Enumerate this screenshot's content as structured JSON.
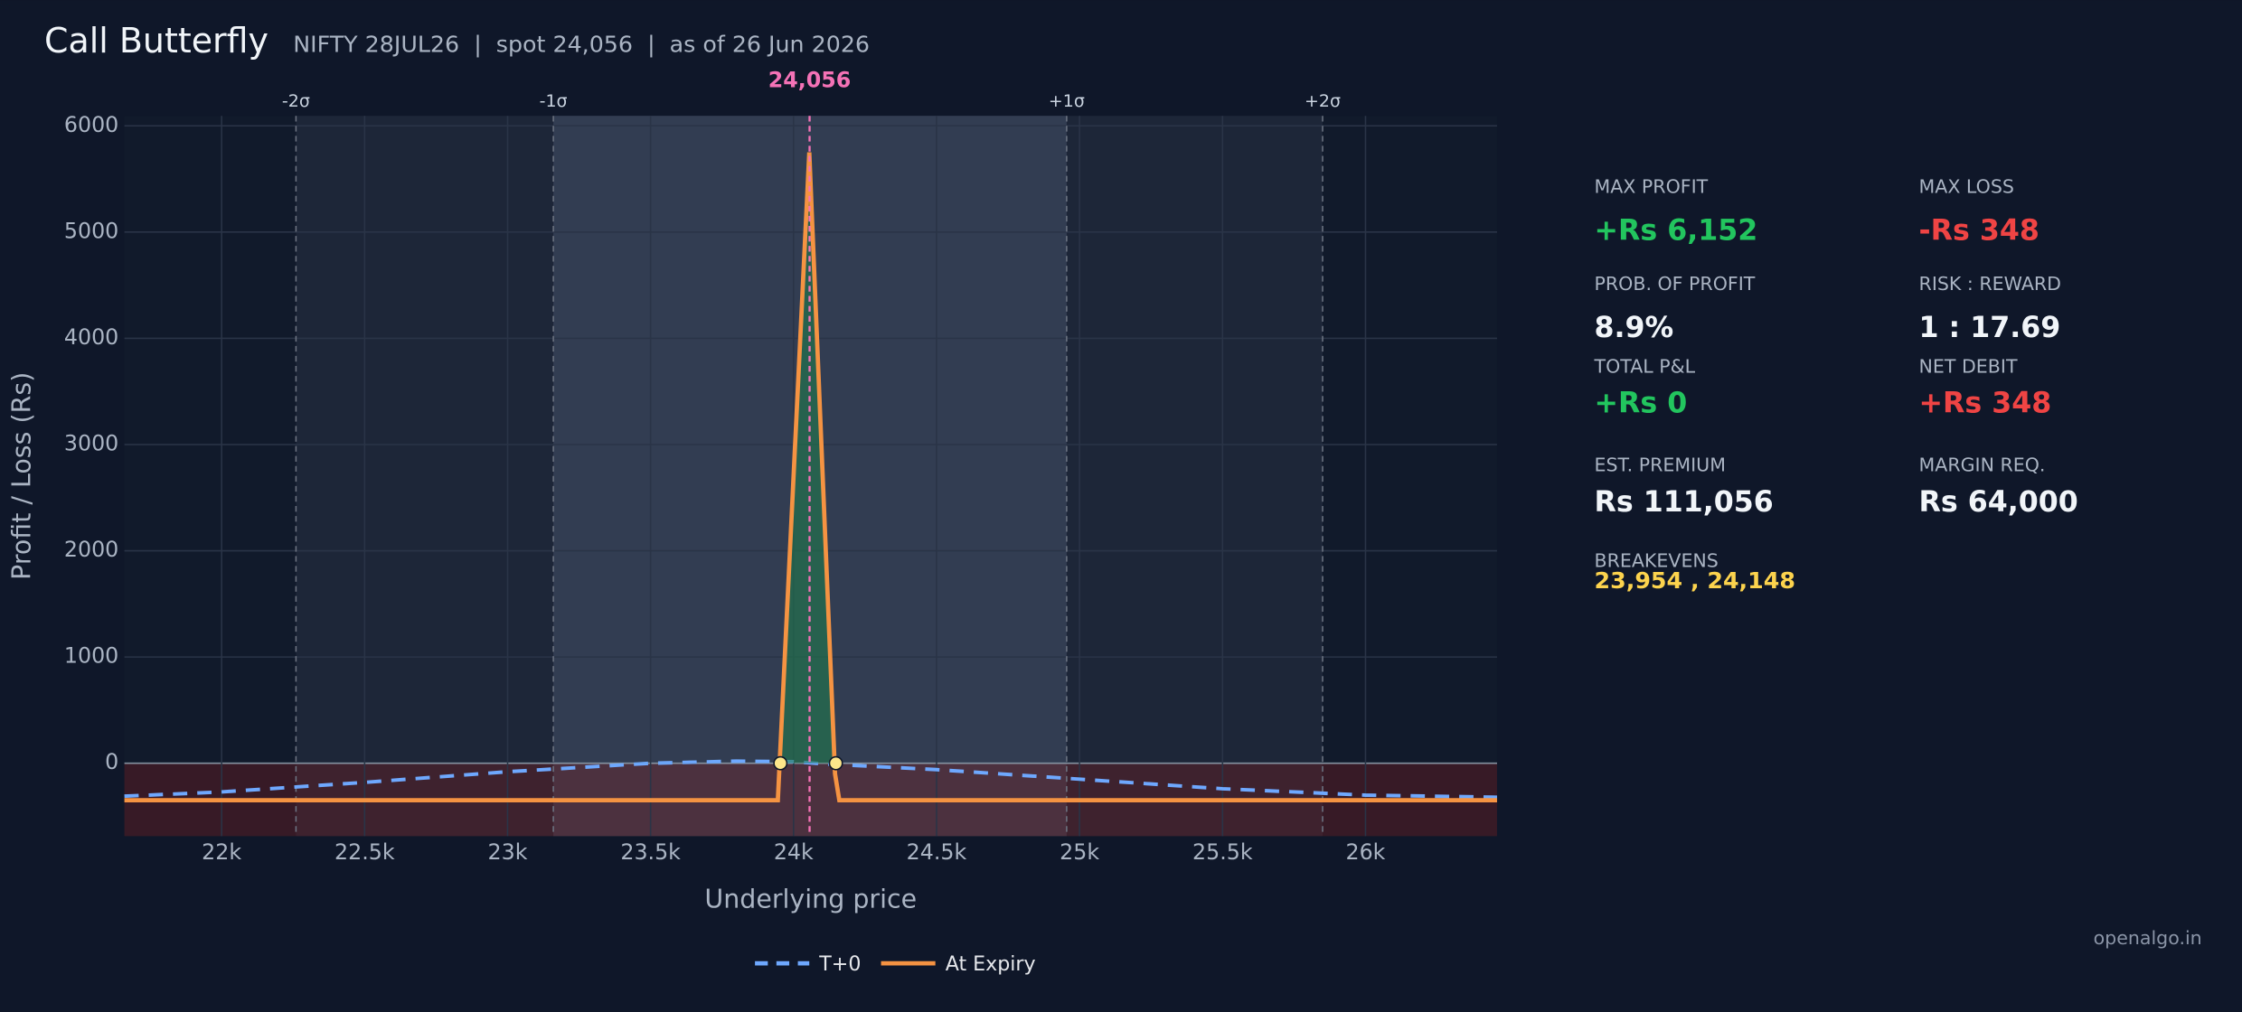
{
  "chart_data": {
    "type": "line",
    "title": "Call Butterfly",
    "subtitle": "NIFTY 28JUL26  |  spot 24,056  |  as of 26 Jun 2026",
    "xlabel": "Underlying price",
    "ylabel": "Profit / Loss (Rs)",
    "xlim": [
      21660,
      26460
    ],
    "ylim": [
      -686,
      6094
    ],
    "xticks": [
      {
        "value": 22000,
        "label": "22k"
      },
      {
        "value": 22500,
        "label": "22.5k"
      },
      {
        "value": 23000,
        "label": "23k"
      },
      {
        "value": 23500,
        "label": "23.5k"
      },
      {
        "value": 24000,
        "label": "24k"
      },
      {
        "value": 24500,
        "label": "24.5k"
      },
      {
        "value": 25000,
        "label": "25k"
      },
      {
        "value": 25500,
        "label": "25.5k"
      },
      {
        "value": 26000,
        "label": "26k"
      }
    ],
    "yticks": [
      0,
      1000,
      2000,
      3000,
      4000,
      5000,
      6000
    ],
    "grid": true,
    "sigma_lines": [
      {
        "value": 22260,
        "label": "-2σ"
      },
      {
        "value": 23160,
        "label": "-1σ"
      },
      {
        "value": 24955,
        "label": "+1σ"
      },
      {
        "value": 25850,
        "label": "+2σ"
      }
    ],
    "spot": {
      "value": 24056,
      "label": "24,056"
    },
    "breakevens": [
      23954,
      24148
    ],
    "series": [
      {
        "name": "T+0",
        "color": "#6ea8fe",
        "dash": true,
        "x": [
          21660,
          22000,
          22500,
          23000,
          23500,
          23800,
          24000,
          24100,
          24500,
          25000,
          25500,
          26000,
          26460
        ],
        "values": [
          -310,
          -270,
          -180,
          -80,
          0,
          20,
          15,
          -5,
          -60,
          -150,
          -240,
          -300,
          -320
        ]
      },
      {
        "name": "At Expiry",
        "color": "#f59342",
        "dash": false,
        "x": [
          21660,
          23945,
          24055,
          24145,
          24160,
          26460
        ],
        "values": [
          -348,
          -348,
          5750,
          -100,
          -348,
          -348
        ]
      }
    ],
    "watermark": "openalgo.in"
  },
  "stats": [
    {
      "label": "MAX PROFIT",
      "value": "+Rs 6,152",
      "color": "#22c55e"
    },
    {
      "label": "MAX LOSS",
      "value": "-Rs 348",
      "color": "#ef4444"
    },
    {
      "label": "PROB. OF PROFIT",
      "value": "8.9%",
      "color": "#f1f5f9"
    },
    {
      "label": "RISK : REWARD",
      "value": "1 : 17.69",
      "color": "#f1f5f9"
    },
    {
      "label": "TOTAL P&L",
      "value": "+Rs 0",
      "color": "#22c55e"
    },
    {
      "label": "NET DEBIT",
      "value": "+Rs 348",
      "color": "#ef4444"
    },
    {
      "label": "EST. PREMIUM",
      "value": "Rs 111,056",
      "color": "#f1f5f9"
    },
    {
      "label": "MARGIN REQ.",
      "value": "Rs 64,000",
      "color": "#f1f5f9"
    },
    {
      "label": "BREAKEVENS",
      "value": "23,954 , 24,148",
      "color": "#fcd34d"
    }
  ]
}
